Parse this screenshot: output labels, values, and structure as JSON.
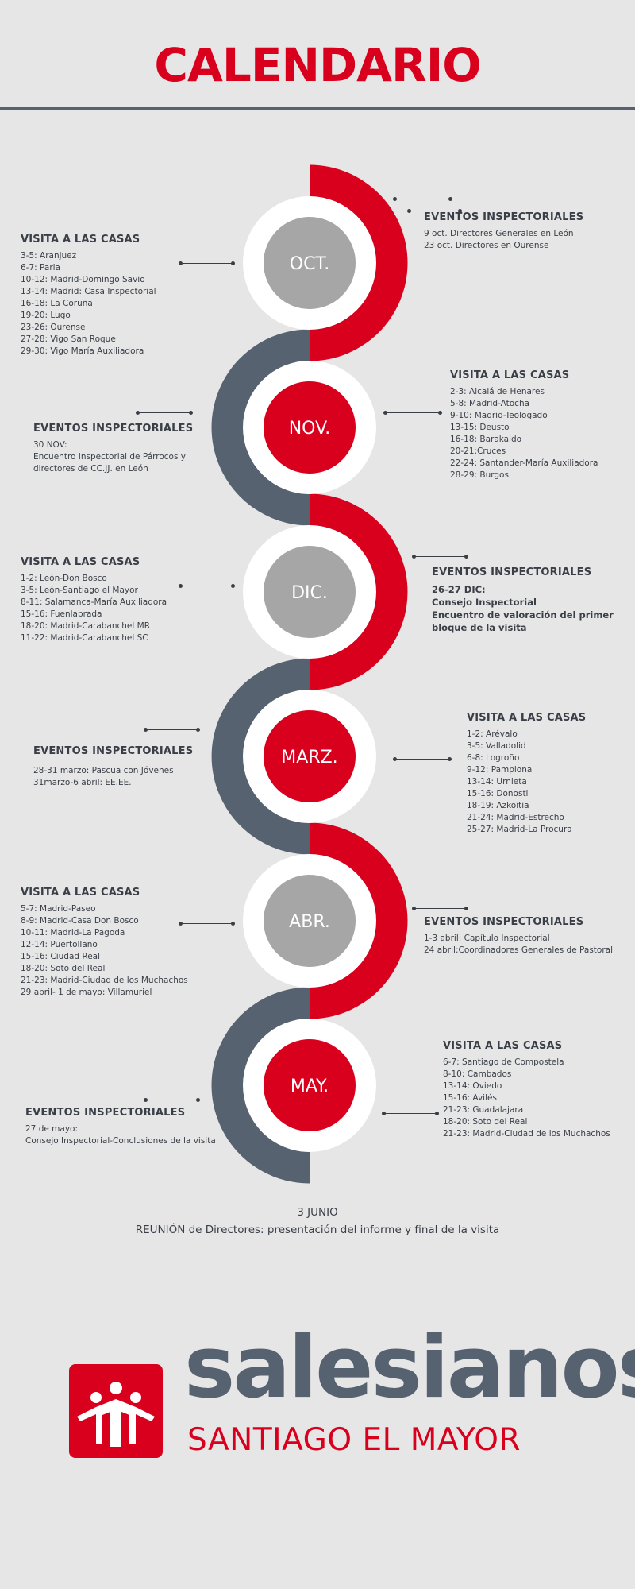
{
  "title": "CALENDARIO",
  "colors": {
    "red": "#d9001e",
    "slate": "#566270",
    "grey": "#a6a6a6",
    "background": "#e6e6e6"
  },
  "months": [
    {
      "label": "OCT.",
      "left": {
        "heading": "VISITA A LAS CASAS",
        "lines": [
          "3-5: Aranjuez",
          "6-7: Parla",
          "10-12: Madrid-Domingo Savio",
          "13-14: Madrid: Casa Inspectorial",
          "16-18: La Coruña",
          "19-20: Lugo",
          "23-26: Ourense",
          "27-28: Vigo San Roque",
          "29-30: Vigo María Auxiliadora"
        ]
      },
      "right": {
        "heading": "EVENTOS INSPECTORIALES",
        "lines": [
          "9 oct. Directores Generales en León",
          "23 oct. Directores en Ourense"
        ]
      }
    },
    {
      "label": "NOV.",
      "left": {
        "heading": "EVENTOS INSPECTORIALES",
        "lines": [
          "30 NOV:",
          "Encuentro Inspectorial de Párrocos y",
          "directores de CC.JJ. en León"
        ]
      },
      "right": {
        "heading": "VISITA A LAS CASAS",
        "lines": [
          "2-3: Alcalá de Henares",
          "5-8: Madrid-Atocha",
          "9-10: Madrid-Teologado",
          "13-15: Deusto",
          "16-18: Barakaldo",
          "20-21:Cruces",
          "22-24: Santander-María Auxiliadora",
          "28-29: Burgos"
        ]
      }
    },
    {
      "label": "DIC.",
      "left": {
        "heading": "VISITA A LAS CASAS",
        "lines": [
          "1-2: León-Don Bosco",
          "3-5: León-Santiago el Mayor",
          "8-11: Salamanca-María Auxiliadora",
          "15-16: Fuenlabrada",
          "18-20: Madrid-Carabanchel MR",
          "11-22: Madrid-Carabanchel SC"
        ]
      },
      "right": {
        "heading": "EVENTOS INSPECTORIALES",
        "lines": [
          "26-27 DIC:",
          "Consejo Inspectorial",
          "Encuentro de valoración del primer",
          "bloque de la visita"
        ]
      }
    },
    {
      "label": "MARZ.",
      "left": {
        "heading": "EVENTOS INSPECTORIALES",
        "lines": [
          "28-31 marzo: Pascua con Jóvenes",
          "31marzo-6 abril: EE.EE."
        ]
      },
      "right": {
        "heading": "VISITA A LAS CASAS",
        "lines": [
          "1-2: Arévalo",
          "3-5: Valladolid",
          "6-8: Logroño",
          "9-12: Pamplona",
          "13-14: Urnieta",
          "15-16: Donosti",
          "18-19: Azkoitia",
          "21-24: Madrid-Estrecho",
          "25-27: Madrid-La Procura"
        ]
      }
    },
    {
      "label": "ABR.",
      "left": {
        "heading": "VISITA A LAS CASAS",
        "lines": [
          "5-7: Madrid-Paseo",
          "8-9: Madrid-Casa Don Bosco",
          "10-11: Madrid-La Pagoda",
          "12-14: Puertollano",
          "15-16: Ciudad Real",
          "18-20: Soto del Real",
          "21-23: Madrid-Ciudad de los Muchachos",
          "29 abril- 1 de mayo: Villamuriel"
        ]
      },
      "right": {
        "heading": "EVENTOS INSPECTORIALES",
        "lines": [
          "1-3 abril: Capítulo Inspectorial",
          "24 abril:Coordinadores Generales de Pastoral"
        ]
      }
    },
    {
      "label": "MAY.",
      "left": {
        "heading": "EVENTOS INSPECTORIALES",
        "lines": [
          "27 de mayo:",
          "Consejo Inspectorial-Conclusiones de la visita"
        ]
      },
      "right": {
        "heading": "VISITA A LAS CASAS",
        "lines": [
          "6-7: Santiago de Compostela",
          "8-10: Cambados",
          "13-14: Oviedo",
          "15-16: Avilés",
          "21-23: Guadalajara",
          "18-20: Soto del Real",
          "21-23: Madrid-Ciudad de los Muchachos"
        ]
      }
    }
  ],
  "closing": {
    "date": "3 JUNIO",
    "text": "REUNIÓN de Directores: presentación del informe y final de la visita"
  },
  "logo": {
    "wordmark": "salesianos",
    "subtitle": "SANTIAGO EL MAYOR"
  }
}
